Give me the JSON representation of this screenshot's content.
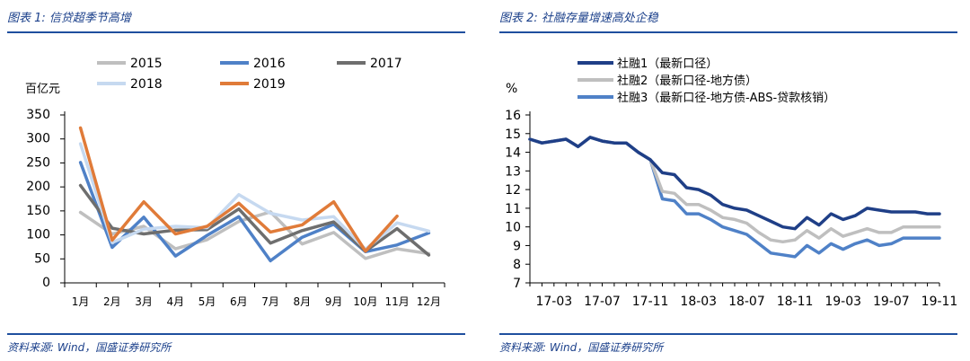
{
  "left": {
    "title": "图表 1:  信贷超季节高增",
    "source": "资料来源:  Wind，国盛证券研究所",
    "chart_data": {
      "type": "line",
      "ylabel": "百亿元",
      "ylim": [
        0,
        350
      ],
      "yticks": [
        0,
        50,
        100,
        150,
        200,
        250,
        300,
        350
      ],
      "categories": [
        "1月",
        "2月",
        "3月",
        "4月",
        "5月",
        "6月",
        "7月",
        "8月",
        "9月",
        "10月",
        "11月",
        "12月"
      ],
      "legend_position": "top",
      "series": [
        {
          "name": "2015",
          "color": "#bfbfbf",
          "values": [
            147,
            102,
            118,
            71,
            90,
            128,
            148,
            81,
            105,
            51,
            71,
            61
          ]
        },
        {
          "name": "2016",
          "color": "#4f81c7",
          "values": [
            251,
            74,
            137,
            56,
            99,
            138,
            46,
            95,
            122,
            65,
            79,
            104
          ]
        },
        {
          "name": "2017",
          "color": "#6e6e6e",
          "values": [
            203,
            114,
            102,
            110,
            111,
            154,
            83,
            109,
            127,
            66,
            113,
            58
          ]
        },
        {
          "name": "2018",
          "color": "#c6d9f0",
          "values": [
            290,
            84,
            112,
            118,
            115,
            184,
            145,
            131,
            138,
            70,
            125,
            108
          ]
        },
        {
          "name": "2019",
          "color": "#e07b39",
          "values": [
            323,
            89,
            169,
            102,
            118,
            166,
            106,
            121,
            169,
            66,
            139,
            null
          ]
        }
      ]
    }
  },
  "right": {
    "title": "图表 2:  社融存量增速高处企稳",
    "source": "资料来源:  Wind，国盛证券研究所",
    "chart_data": {
      "type": "line",
      "ylabel": "%",
      "ylim": [
        7,
        16
      ],
      "yticks": [
        7,
        8,
        9,
        10,
        11,
        12,
        13,
        14,
        15,
        16
      ],
      "x": [
        "17-01",
        "17-02",
        "17-03",
        "17-04",
        "17-05",
        "17-06",
        "17-07",
        "17-08",
        "17-09",
        "17-10",
        "17-11",
        "17-12",
        "18-01",
        "18-02",
        "18-03",
        "18-04",
        "18-05",
        "18-06",
        "18-07",
        "18-08",
        "18-09",
        "18-10",
        "18-11",
        "18-12",
        "19-01",
        "19-02",
        "19-03",
        "19-04",
        "19-05",
        "19-06",
        "19-07",
        "19-08",
        "19-09",
        "19-10",
        "19-11"
      ],
      "xtick_labels": [
        "17-03",
        "17-07",
        "17-11",
        "18-03",
        "18-07",
        "18-11",
        "19-03",
        "19-07",
        "19-11"
      ],
      "legend_position": "top-right",
      "series": [
        {
          "name": "社融1（最新口径）",
          "color": "#1f3f87",
          "values": [
            14.7,
            14.5,
            14.6,
            14.7,
            14.3,
            14.8,
            14.6,
            14.5,
            14.5,
            14.0,
            13.6,
            12.9,
            12.8,
            12.1,
            12.0,
            11.7,
            11.2,
            11.0,
            10.9,
            10.6,
            10.3,
            10.0,
            9.9,
            10.5,
            10.1,
            10.7,
            10.4,
            10.6,
            11.0,
            10.9,
            10.8,
            10.8,
            10.8,
            10.7,
            10.7
          ]
        },
        {
          "name": "社融2（最新口径-地方债）",
          "color": "#bfbfbf",
          "values": [
            14.7,
            14.5,
            14.6,
            14.7,
            14.3,
            14.8,
            14.6,
            14.5,
            14.5,
            14.0,
            13.6,
            11.9,
            11.8,
            11.2,
            11.2,
            10.9,
            10.5,
            10.4,
            10.2,
            9.7,
            9.3,
            9.2,
            9.3,
            9.8,
            9.4,
            9.9,
            9.5,
            9.7,
            9.9,
            9.7,
            9.7,
            10.0,
            10.0,
            10.0,
            10.0
          ]
        },
        {
          "name": "社融3（最新口径-地方债-ABS-贷款核销）",
          "color": "#4f81c7",
          "values": [
            14.7,
            14.5,
            14.6,
            14.7,
            14.3,
            14.8,
            14.6,
            14.5,
            14.5,
            14.0,
            13.6,
            11.5,
            11.4,
            10.7,
            10.7,
            10.4,
            10.0,
            9.8,
            9.6,
            9.1,
            8.6,
            8.5,
            8.4,
            9.0,
            8.6,
            9.1,
            8.8,
            9.1,
            9.3,
            9.0,
            9.1,
            9.4,
            9.4,
            9.4,
            9.4
          ]
        }
      ]
    }
  }
}
